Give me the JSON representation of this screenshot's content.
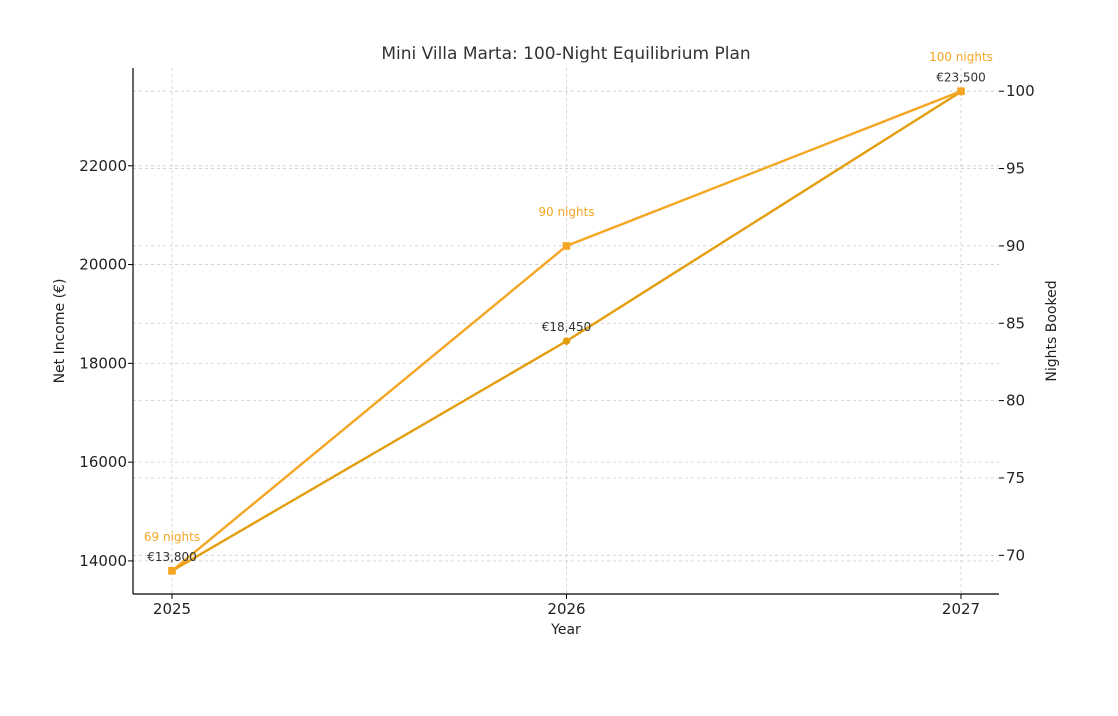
{
  "chart_data": {
    "type": "line",
    "title": "Mini Villa Marta: 100-Night Equilibrium Plan",
    "xlabel": "Year",
    "ylabel_left": "Net Income (€)",
    "ylabel_right": "Nights Booked",
    "categories": [
      "2025",
      "2026",
      "2027"
    ],
    "ylim_left": [
      13330,
      23980
    ],
    "yticks_left": [
      "14000",
      "16000",
      "18000",
      "20000",
      "22000"
    ],
    "ylim_right": [
      67.5,
      101.5
    ],
    "yticks_right": [
      "70",
      "75",
      "80",
      "85",
      "90",
      "95",
      "100"
    ],
    "grid": true,
    "series": [
      {
        "axis": "left",
        "marker": "circle",
        "values": [
          13800,
          18450,
          23500
        ],
        "labels": [
          "€13,800",
          "€18,450",
          "€23,500"
        ],
        "color": "#E39E0E"
      },
      {
        "axis": "right",
        "marker": "square",
        "values": [
          69,
          90,
          100
        ],
        "labels": [
          "69 nights",
          "90 nights",
          "100 nights"
        ],
        "color": "#F5A623"
      }
    ]
  }
}
